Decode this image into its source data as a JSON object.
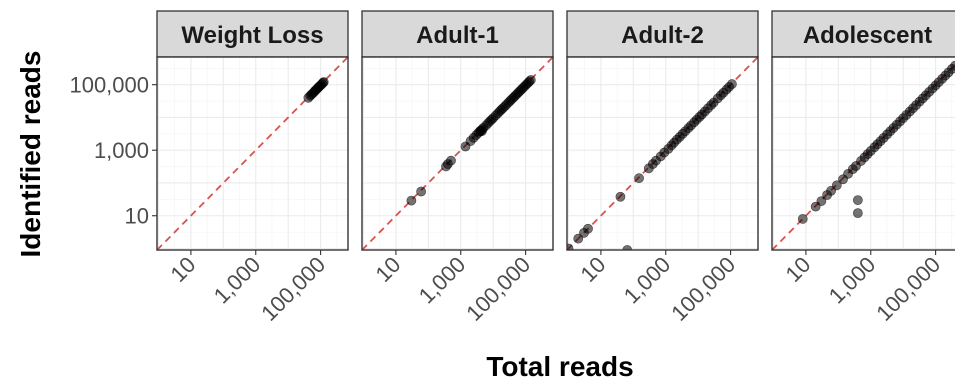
{
  "chart_data": {
    "type": "scatter",
    "xlabel": "Total reads",
    "ylabel": "Identified reads",
    "scale": "log10",
    "xlim": [
      0.9,
      700000
    ],
    "ylim": [
      0.9,
      700000
    ],
    "x_ticks": [
      10,
      1000,
      100000
    ],
    "x_tick_labels": [
      "10",
      "1,000",
      "100,000"
    ],
    "y_ticks": [
      10,
      1000,
      100000
    ],
    "y_tick_labels": [
      "10",
      "1,000",
      "100,000"
    ],
    "reference_line": "y = x (dashed, red)",
    "grid": true,
    "colors": {
      "points": "#000000",
      "reference_line": "#d9534f",
      "strip": "#d9d9d9"
    },
    "panels": [
      {
        "title": "Weight Loss",
        "points": [
          [
            42000,
            40000
          ],
          [
            48000,
            46000
          ],
          [
            52000,
            50000
          ],
          [
            58000,
            55000
          ],
          [
            63000,
            60000
          ],
          [
            68000,
            66000
          ],
          [
            74000,
            71000
          ],
          [
            80000,
            77000
          ],
          [
            86000,
            83000
          ],
          [
            92000,
            89000
          ],
          [
            100000,
            96000
          ],
          [
            110000,
            105000
          ],
          [
            118000,
            114000
          ],
          [
            125000,
            121000
          ]
        ]
      },
      {
        "title": "Adult-1",
        "points": [
          [
            30,
            29
          ],
          [
            60,
            55
          ],
          [
            350,
            320
          ],
          [
            400,
            380
          ],
          [
            500,
            480
          ],
          [
            1400,
            1300
          ],
          [
            2000,
            1900
          ],
          [
            2500,
            2400
          ],
          [
            3000,
            2900
          ],
          [
            3500,
            3400
          ],
          [
            4000,
            3800
          ],
          [
            4500,
            4300
          ],
          [
            4500,
            3800
          ],
          [
            4000,
            3900
          ],
          [
            5000,
            4800
          ],
          [
            6000,
            5700
          ],
          [
            7000,
            6700
          ],
          [
            8000,
            7700
          ],
          [
            9000,
            8600
          ],
          [
            10000,
            9600
          ],
          [
            12000,
            11500
          ],
          [
            14000,
            13400
          ],
          [
            16000,
            15400
          ],
          [
            18000,
            17300
          ],
          [
            20000,
            19200
          ],
          [
            23000,
            22000
          ],
          [
            26000,
            25000
          ],
          [
            30000,
            28800
          ],
          [
            34000,
            32600
          ],
          [
            38000,
            36500
          ],
          [
            43000,
            41200
          ],
          [
            48000,
            46000
          ],
          [
            54000,
            51800
          ],
          [
            60000,
            57600
          ],
          [
            67000,
            64300
          ],
          [
            75000,
            72000
          ],
          [
            84000,
            80600
          ],
          [
            94000,
            90200
          ],
          [
            105000,
            100800
          ],
          [
            118000,
            113000
          ],
          [
            130000,
            125000
          ],
          [
            145000,
            139000
          ]
        ]
      },
      {
        "title": "Adult-2",
        "points": [
          [
            1,
            1
          ],
          [
            2,
            2
          ],
          [
            3,
            3
          ],
          [
            4,
            4
          ],
          [
            40,
            38
          ],
          [
            65,
            0.9
          ],
          [
            150,
            140
          ],
          [
            300,
            280
          ],
          [
            400,
            380
          ],
          [
            500,
            480
          ],
          [
            700,
            650
          ],
          [
            900,
            850
          ],
          [
            1200,
            1100
          ],
          [
            1500,
            1400
          ],
          [
            1800,
            1700
          ],
          [
            2200,
            2100
          ],
          [
            2700,
            2550
          ],
          [
            3300,
            3150
          ],
          [
            4000,
            3800
          ],
          [
            5000,
            4750
          ],
          [
            6000,
            5700
          ],
          [
            7500,
            7100
          ],
          [
            9000,
            8550
          ],
          [
            11000,
            10400
          ],
          [
            13000,
            12300
          ],
          [
            16000,
            15200
          ],
          [
            20000,
            19000
          ],
          [
            25000,
            23800
          ],
          [
            30000,
            28500
          ],
          [
            40000,
            38000
          ],
          [
            50000,
            47500
          ],
          [
            60000,
            57000
          ],
          [
            75000,
            71000
          ],
          [
            90000,
            85500
          ],
          [
            110000,
            104500
          ]
        ]
      },
      {
        "title": "Adolescent",
        "points": [
          [
            8,
            8
          ],
          [
            20,
            19
          ],
          [
            30,
            28
          ],
          [
            45,
            43
          ],
          [
            60,
            58
          ],
          [
            90,
            85
          ],
          [
            140,
            130
          ],
          [
            200,
            190
          ],
          [
            280,
            265
          ],
          [
            350,
            330
          ],
          [
            400,
            12
          ],
          [
            400,
            30
          ],
          [
            500,
            470
          ],
          [
            650,
            610
          ],
          [
            800,
            760
          ],
          [
            1000,
            950
          ],
          [
            1300,
            1230
          ],
          [
            1600,
            1520
          ],
          [
            2000,
            1900
          ],
          [
            2500,
            2380
          ],
          [
            3200,
            3040
          ],
          [
            4000,
            3800
          ],
          [
            5000,
            4750
          ],
          [
            6300,
            6000
          ],
          [
            8000,
            7600
          ],
          [
            10000,
            9500
          ],
          [
            12500,
            11900
          ],
          [
            16000,
            15200
          ],
          [
            20000,
            19000
          ],
          [
            25000,
            23800
          ],
          [
            32000,
            30400
          ],
          [
            40000,
            38000
          ],
          [
            50000,
            47500
          ],
          [
            63000,
            60000
          ],
          [
            80000,
            76000
          ],
          [
            100000,
            95000
          ],
          [
            125000,
            119000
          ],
          [
            160000,
            152000
          ],
          [
            200000,
            190000
          ],
          [
            250000,
            238000
          ],
          [
            320000,
            304000
          ],
          [
            400000,
            380000
          ]
        ]
      }
    ]
  }
}
